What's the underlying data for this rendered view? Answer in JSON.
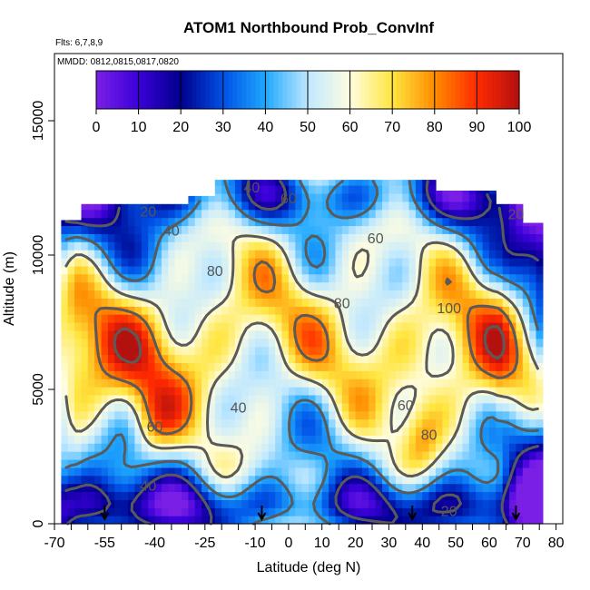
{
  "chart_data": {
    "type": "heatmap",
    "title": "ATOM1 Northbound Prob_ConvInf",
    "subtitle_lines": [
      "Flts: 6,7,8,9",
      "MMDD: 0812,0815,0817,0820"
    ],
    "xlabel": "Latitude (deg N)",
    "ylabel": "Altitude (m)",
    "xlim": [
      -70,
      82
    ],
    "ylim": [
      0,
      17500
    ],
    "x_ticks": [
      -70,
      -55,
      -40,
      -25,
      -10,
      0,
      10,
      20,
      30,
      40,
      50,
      60,
      70,
      80
    ],
    "x_tick_labels": [
      "-70",
      "-55",
      "-40",
      "-25",
      "-10",
      "0",
      "10",
      "20",
      "30",
      "40",
      "50",
      "60",
      "70",
      "80"
    ],
    "x_minor_step": 5,
    "y_ticks": [
      0,
      5000,
      10000,
      15000
    ],
    "y_tick_labels": [
      "0",
      "5000",
      "10000",
      "15000"
    ],
    "colorbar": {
      "min": 0,
      "max": 100,
      "ticks": [
        0,
        10,
        20,
        30,
        40,
        50,
        60,
        70,
        80,
        90,
        100
      ],
      "tick_labels": [
        "0",
        "10",
        "20",
        "30",
        "40",
        "50",
        "60",
        "70",
        "80",
        "90",
        "100"
      ],
      "colors": [
        "#7a1fe6",
        "#3b00d9",
        "#00008c",
        "#0050e6",
        "#1fa8ff",
        "#bfe8ff",
        "#fffde0",
        "#ffe640",
        "#ff8c00",
        "#ff2a00",
        "#b31010"
      ]
    },
    "contour_labels": [
      {
        "lat": -42,
        "alt": 11600,
        "text": "20"
      },
      {
        "lat": -35,
        "alt": 10900,
        "text": "40"
      },
      {
        "lat": -11,
        "alt": 12500,
        "text": "40"
      },
      {
        "lat": 0,
        "alt": 12100,
        "text": "60"
      },
      {
        "lat": 26,
        "alt": 10600,
        "text": "60"
      },
      {
        "lat": -22,
        "alt": 9400,
        "text": "80"
      },
      {
        "lat": 16,
        "alt": 8200,
        "text": "80"
      },
      {
        "lat": 48,
        "alt": 8000,
        "text": "100"
      },
      {
        "lat": -40,
        "alt": 3600,
        "text": "60"
      },
      {
        "lat": -15,
        "alt": 4300,
        "text": "40"
      },
      {
        "lat": 42,
        "alt": 3300,
        "text": "80"
      },
      {
        "lat": 35,
        "alt": 4400,
        "text": "60"
      },
      {
        "lat": -42,
        "alt": 1400,
        "text": "40"
      },
      {
        "lat": 48,
        "alt": 450,
        "text": "20"
      },
      {
        "lat": 68,
        "alt": 11500,
        "text": "20"
      }
    ],
    "flight_markers_lat": [
      -55,
      -8,
      37,
      68
    ]
  }
}
